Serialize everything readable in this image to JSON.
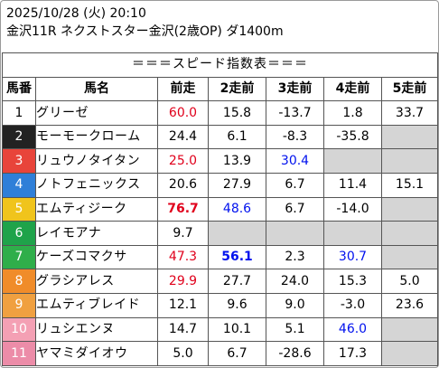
{
  "header": {
    "datetime": "2025/10/28 (火) 20:10",
    "race": "金沢11R ネクストスター金沢(2歳OP) ダ1400m"
  },
  "table": {
    "caption": "＝＝＝スピード指数表＝＝＝",
    "columns": [
      "馬番",
      "馬名",
      "前走",
      "2走前",
      "3走前",
      "4走前",
      "5走前"
    ],
    "number_colors": {
      "1": {
        "bg": "#ffffff",
        "fg": "#000000"
      },
      "2": {
        "bg": "#222222",
        "fg": "#ffffff"
      },
      "3": {
        "bg": "#e8443a",
        "fg": "#ffffff"
      },
      "4": {
        "bg": "#2f7fd8",
        "fg": "#ffffff"
      },
      "5": {
        "bg": "#f0c41c",
        "fg": "#ffffff"
      },
      "6": {
        "bg": "#1fa34a",
        "fg": "#ffffff"
      },
      "7": {
        "bg": "#2fae4a",
        "fg": "#ffffff"
      },
      "8": {
        "bg": "#f08c2a",
        "fg": "#ffffff"
      },
      "9": {
        "bg": "#f0a040",
        "fg": "#ffffff"
      },
      "10": {
        "bg": "#f4a0b4",
        "fg": "#ffffff"
      },
      "11": {
        "bg": "#ec8ca8",
        "fg": "#ffffff"
      }
    },
    "rows": [
      {
        "num": "1",
        "name": "グリーゼ",
        "vals": [
          {
            "v": "60.0",
            "c": "red"
          },
          {
            "v": "15.8"
          },
          {
            "v": "-13.7"
          },
          {
            "v": "1.8"
          },
          {
            "v": "33.7"
          }
        ]
      },
      {
        "num": "2",
        "name": "モーモークローム",
        "vals": [
          {
            "v": "24.4"
          },
          {
            "v": "6.1"
          },
          {
            "v": "-8.3"
          },
          {
            "v": "-35.8"
          },
          {
            "v": ""
          }
        ]
      },
      {
        "num": "3",
        "name": "リュウノタイタン",
        "vals": [
          {
            "v": "25.0",
            "c": "red"
          },
          {
            "v": "13.9"
          },
          {
            "v": "30.4",
            "c": "blue"
          },
          {
            "v": ""
          },
          {
            "v": ""
          }
        ]
      },
      {
        "num": "4",
        "name": "ノトフェニックス",
        "vals": [
          {
            "v": "20.6"
          },
          {
            "v": "27.9"
          },
          {
            "v": "6.7"
          },
          {
            "v": "11.4"
          },
          {
            "v": "15.1"
          }
        ]
      },
      {
        "num": "5",
        "name": "エムティジーク",
        "vals": [
          {
            "v": "76.7",
            "c": "red bold"
          },
          {
            "v": "48.6",
            "c": "blue"
          },
          {
            "v": "6.7"
          },
          {
            "v": "-14.0"
          },
          {
            "v": ""
          }
        ]
      },
      {
        "num": "6",
        "name": "レイモアナ",
        "vals": [
          {
            "v": "9.7"
          },
          {
            "v": ""
          },
          {
            "v": ""
          },
          {
            "v": ""
          },
          {
            "v": ""
          }
        ]
      },
      {
        "num": "7",
        "name": "ケーズコマクサ",
        "vals": [
          {
            "v": "47.3",
            "c": "red"
          },
          {
            "v": "56.1",
            "c": "blue bold"
          },
          {
            "v": "2.3"
          },
          {
            "v": "30.7",
            "c": "blue"
          },
          {
            "v": ""
          }
        ]
      },
      {
        "num": "8",
        "name": "グラシアレス",
        "vals": [
          {
            "v": "29.9",
            "c": "red"
          },
          {
            "v": "27.7"
          },
          {
            "v": "24.0"
          },
          {
            "v": "15.3"
          },
          {
            "v": "5.0"
          }
        ]
      },
      {
        "num": "9",
        "name": "エムティブレイド",
        "vals": [
          {
            "v": "12.1"
          },
          {
            "v": "9.6"
          },
          {
            "v": "9.0"
          },
          {
            "v": "-3.0"
          },
          {
            "v": "23.6"
          }
        ]
      },
      {
        "num": "10",
        "name": "リュシエンヌ",
        "vals": [
          {
            "v": "14.7"
          },
          {
            "v": "10.1"
          },
          {
            "v": "5.1"
          },
          {
            "v": "46.0",
            "c": "blue"
          },
          {
            "v": ""
          }
        ]
      },
      {
        "num": "11",
        "name": "ヤマミダイオウ",
        "vals": [
          {
            "v": "5.0"
          },
          {
            "v": "6.7"
          },
          {
            "v": "-28.6"
          },
          {
            "v": "17.3"
          },
          {
            "v": ""
          }
        ]
      }
    ]
  }
}
